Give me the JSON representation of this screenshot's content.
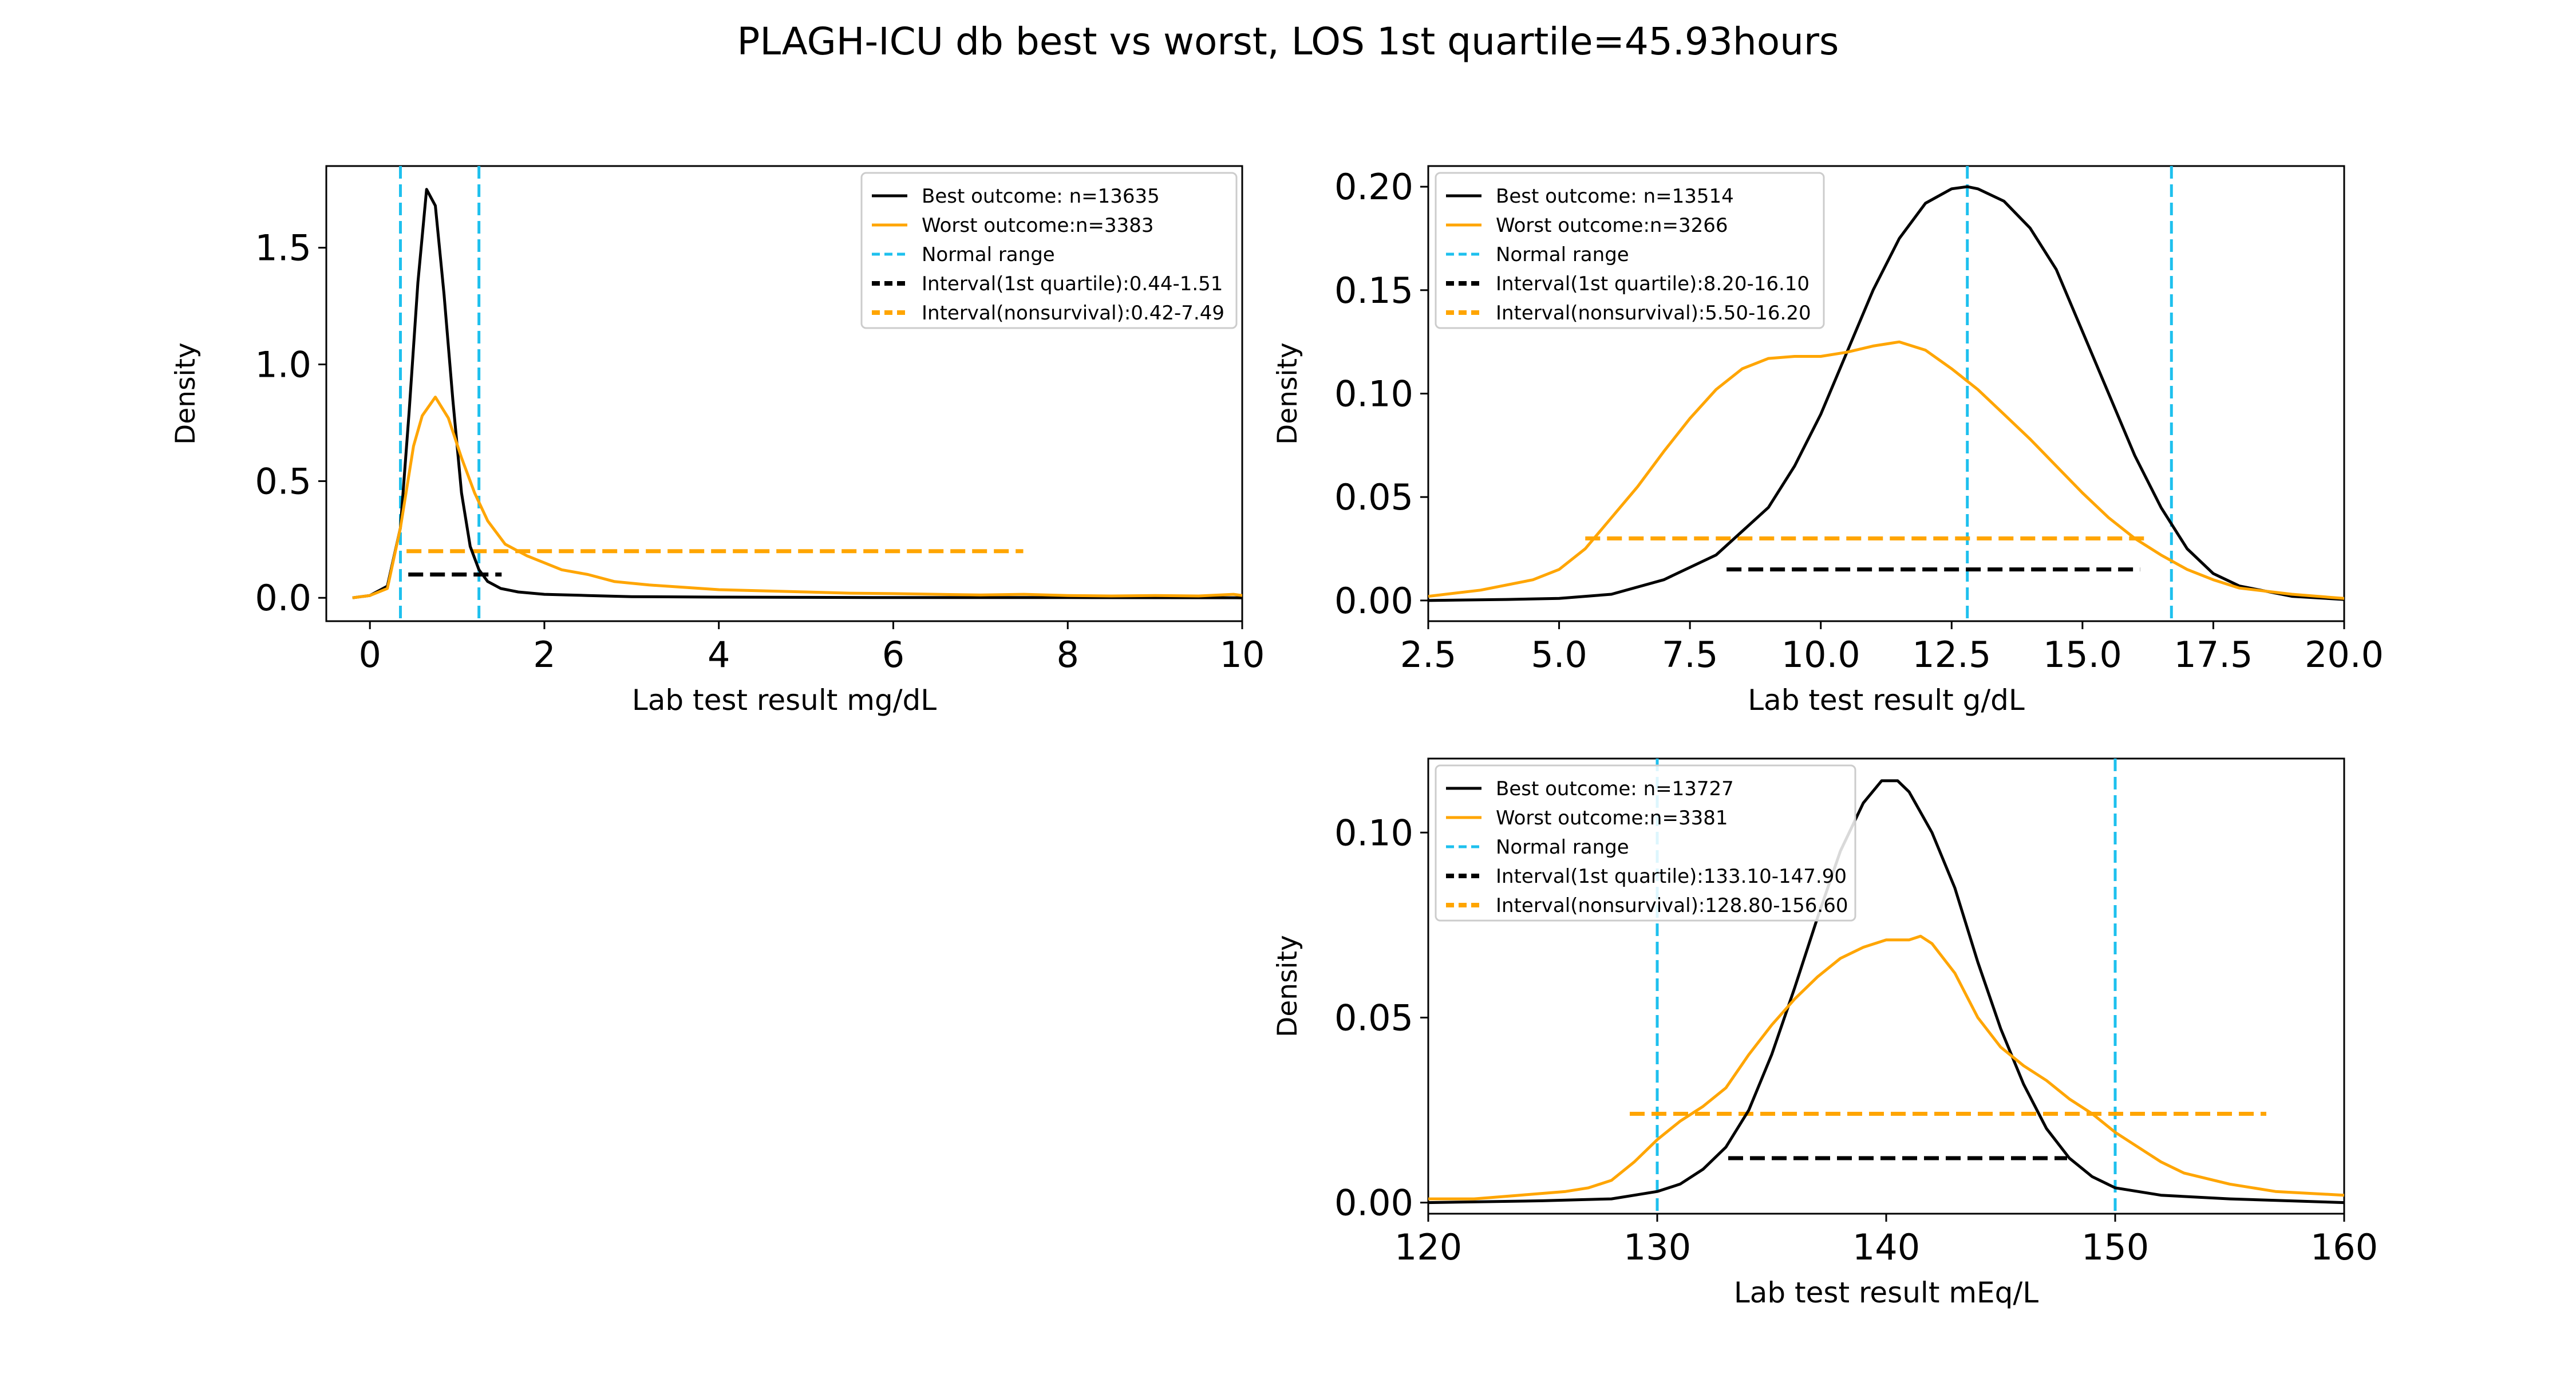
{
  "figure": {
    "title": "PLAGH-ICU db best vs worst, LOS 1st quartile=45.93hours"
  },
  "chart_data": [
    {
      "type": "line",
      "xlabel": "Lab test result mg/dL",
      "ylabel": "Density",
      "xlim": [
        -0.5,
        10
      ],
      "ylim": [
        -0.1,
        1.85
      ],
      "xticks": [
        "0",
        "2",
        "4",
        "6",
        "8",
        "10"
      ],
      "xtick_values": [
        0,
        2,
        4,
        6,
        8,
        10
      ],
      "yticks": [
        "0.0",
        "0.5",
        "1.0",
        "1.5"
      ],
      "ytick_values": [
        0,
        0.5,
        1.0,
        1.5
      ],
      "legend_position": "upper right",
      "series": [
        {
          "name": "Best outcome: n=13635",
          "color": "#000000",
          "x": [
            -0.2,
            0.0,
            0.2,
            0.35,
            0.45,
            0.55,
            0.65,
            0.75,
            0.85,
            0.95,
            1.05,
            1.15,
            1.25,
            1.35,
            1.5,
            1.7,
            2.0,
            2.5,
            3.0,
            4.0,
            5.0,
            6.0,
            8.0,
            10.0
          ],
          "y": [
            0.0,
            0.01,
            0.05,
            0.3,
            0.8,
            1.35,
            1.75,
            1.68,
            1.3,
            0.85,
            0.45,
            0.22,
            0.12,
            0.07,
            0.04,
            0.025,
            0.015,
            0.01,
            0.005,
            0.003,
            0.002,
            0.001,
            0.001,
            0.0
          ]
        },
        {
          "name": "Worst outcome:n=3383",
          "color": "#ffa500",
          "x": [
            -0.2,
            0.0,
            0.2,
            0.35,
            0.5,
            0.6,
            0.75,
            0.9,
            1.05,
            1.2,
            1.35,
            1.55,
            1.8,
            2.0,
            2.2,
            2.5,
            2.8,
            3.2,
            3.6,
            4.0,
            4.5,
            5.0,
            5.5,
            6.0,
            6.5,
            7.0,
            7.5,
            8.0,
            8.5,
            9.0,
            9.5,
            9.9,
            10.0
          ],
          "y": [
            0.0,
            0.01,
            0.04,
            0.3,
            0.65,
            0.78,
            0.86,
            0.77,
            0.6,
            0.45,
            0.33,
            0.23,
            0.18,
            0.15,
            0.12,
            0.1,
            0.07,
            0.055,
            0.045,
            0.035,
            0.03,
            0.025,
            0.02,
            0.018,
            0.015,
            0.012,
            0.015,
            0.01,
            0.008,
            0.01,
            0.008,
            0.015,
            0.01
          ]
        }
      ],
      "normal_range": {
        "label": "Normal range",
        "color": "#1ec0ee",
        "values": [
          0.35,
          1.25
        ]
      },
      "intervals": [
        {
          "label": "Interval(1st quartile):0.44-1.51",
          "color": "#000000",
          "from": 0.44,
          "to": 1.51,
          "y": 0.1
        },
        {
          "label": "Interval(nonsurvival):0.42-7.49",
          "color": "#ffa500",
          "from": 0.42,
          "to": 7.49,
          "y": 0.2
        }
      ]
    },
    {
      "type": "line",
      "xlabel": "Lab test result g/dL",
      "ylabel": "Density",
      "xlim": [
        2.5,
        20.0
      ],
      "ylim": [
        -0.01,
        0.21
      ],
      "xticks": [
        "2.5",
        "5.0",
        "7.5",
        "10.0",
        "12.5",
        "15.0",
        "17.5",
        "20.0"
      ],
      "xtick_values": [
        2.5,
        5.0,
        7.5,
        10.0,
        12.5,
        15.0,
        17.5,
        20.0
      ],
      "yticks": [
        "0.00",
        "0.05",
        "0.10",
        "0.15",
        "0.20"
      ],
      "ytick_values": [
        0,
        0.05,
        0.1,
        0.15,
        0.2
      ],
      "legend_position": "upper left",
      "series": [
        {
          "name": "Best outcome: n=13514",
          "color": "#000000",
          "x": [
            2.5,
            4.0,
            5.0,
            6.0,
            7.0,
            8.0,
            9.0,
            9.5,
            10.0,
            10.5,
            11.0,
            11.5,
            12.0,
            12.5,
            12.8,
            13.0,
            13.5,
            14.0,
            14.5,
            15.0,
            15.5,
            16.0,
            16.5,
            17.0,
            17.5,
            18.0,
            19.0,
            20.0
          ],
          "y": [
            0.0,
            0.0005,
            0.001,
            0.003,
            0.01,
            0.022,
            0.045,
            0.065,
            0.09,
            0.12,
            0.15,
            0.175,
            0.192,
            0.199,
            0.2,
            0.199,
            0.193,
            0.18,
            0.16,
            0.13,
            0.1,
            0.07,
            0.045,
            0.025,
            0.013,
            0.007,
            0.002,
            0.0005
          ]
        },
        {
          "name": "Worst outcome:n=3266",
          "color": "#ffa500",
          "x": [
            2.5,
            3.5,
            4.5,
            5.0,
            5.5,
            6.0,
            6.5,
            7.0,
            7.5,
            8.0,
            8.5,
            9.0,
            9.5,
            10.0,
            10.5,
            11.0,
            11.5,
            12.0,
            12.5,
            13.0,
            13.5,
            14.0,
            14.5,
            15.0,
            15.5,
            16.0,
            16.5,
            17.0,
            17.5,
            18.0,
            19.0,
            20.0
          ],
          "y": [
            0.002,
            0.005,
            0.01,
            0.015,
            0.025,
            0.04,
            0.055,
            0.072,
            0.088,
            0.102,
            0.112,
            0.117,
            0.118,
            0.118,
            0.12,
            0.123,
            0.125,
            0.121,
            0.112,
            0.102,
            0.09,
            0.078,
            0.065,
            0.052,
            0.04,
            0.03,
            0.022,
            0.015,
            0.01,
            0.006,
            0.003,
            0.001
          ]
        }
      ],
      "normal_range": {
        "label": "Normal range",
        "color": "#1ec0ee",
        "values": [
          12.8,
          16.7
        ]
      },
      "intervals": [
        {
          "label": "Interval(1st quartile):8.20-16.10",
          "color": "#000000",
          "from": 8.2,
          "to": 16.1,
          "y": 0.015
        },
        {
          "label": "Interval(nonsurvival):5.50-16.20",
          "color": "#ffa500",
          "from": 5.5,
          "to": 16.2,
          "y": 0.03
        }
      ]
    },
    {
      "type": "line",
      "xlabel": "Lab test result mEq/L",
      "ylabel": "Density",
      "xlim": [
        120,
        160
      ],
      "ylim": [
        -0.003,
        0.12
      ],
      "xticks": [
        "120",
        "130",
        "140",
        "150",
        "160"
      ],
      "xtick_values": [
        120,
        130,
        140,
        150,
        160
      ],
      "yticks": [
        "0.00",
        "0.05",
        "0.10"
      ],
      "ytick_values": [
        0,
        0.05,
        0.1
      ],
      "legend_position": "upper left",
      "series": [
        {
          "name": "Best outcome: n=13727",
          "color": "#000000",
          "x": [
            120,
            125,
            128,
            129,
            130,
            131,
            132,
            133,
            134,
            135,
            136,
            137,
            138,
            139,
            139.8,
            140.5,
            141,
            142,
            143,
            144,
            145,
            146,
            147,
            148,
            149,
            150,
            152,
            155,
            160
          ],
          "y": [
            0.0,
            0.0005,
            0.001,
            0.002,
            0.003,
            0.005,
            0.009,
            0.015,
            0.025,
            0.04,
            0.058,
            0.077,
            0.095,
            0.108,
            0.114,
            0.114,
            0.111,
            0.1,
            0.085,
            0.065,
            0.047,
            0.032,
            0.02,
            0.012,
            0.007,
            0.004,
            0.002,
            0.001,
            0.0
          ]
        },
        {
          "name": "Worst outcome:n=3381",
          "color": "#ffa500",
          "x": [
            120,
            122,
            124,
            126,
            127,
            128,
            129,
            130,
            131,
            132,
            133,
            134,
            135,
            136,
            137,
            138,
            139,
            140,
            141,
            141.5,
            142,
            143,
            144,
            145,
            146,
            147,
            148,
            149,
            150,
            151,
            152,
            153,
            155,
            157,
            160
          ],
          "y": [
            0.001,
            0.001,
            0.002,
            0.003,
            0.004,
            0.006,
            0.011,
            0.017,
            0.022,
            0.026,
            0.031,
            0.04,
            0.048,
            0.055,
            0.061,
            0.066,
            0.069,
            0.071,
            0.071,
            0.072,
            0.07,
            0.062,
            0.05,
            0.042,
            0.037,
            0.033,
            0.028,
            0.024,
            0.019,
            0.015,
            0.011,
            0.008,
            0.005,
            0.003,
            0.002
          ]
        }
      ],
      "normal_range": {
        "label": "Normal range",
        "color": "#1ec0ee",
        "values": [
          130,
          150
        ]
      },
      "intervals": [
        {
          "label": "Interval(1st quartile):133.10-147.90",
          "color": "#000000",
          "from": 133.1,
          "to": 147.9,
          "y": 0.012
        },
        {
          "label": "Interval(nonsurvival):128.80-156.60",
          "color": "#ffa500",
          "from": 128.8,
          "to": 156.6,
          "y": 0.024
        }
      ]
    }
  ]
}
